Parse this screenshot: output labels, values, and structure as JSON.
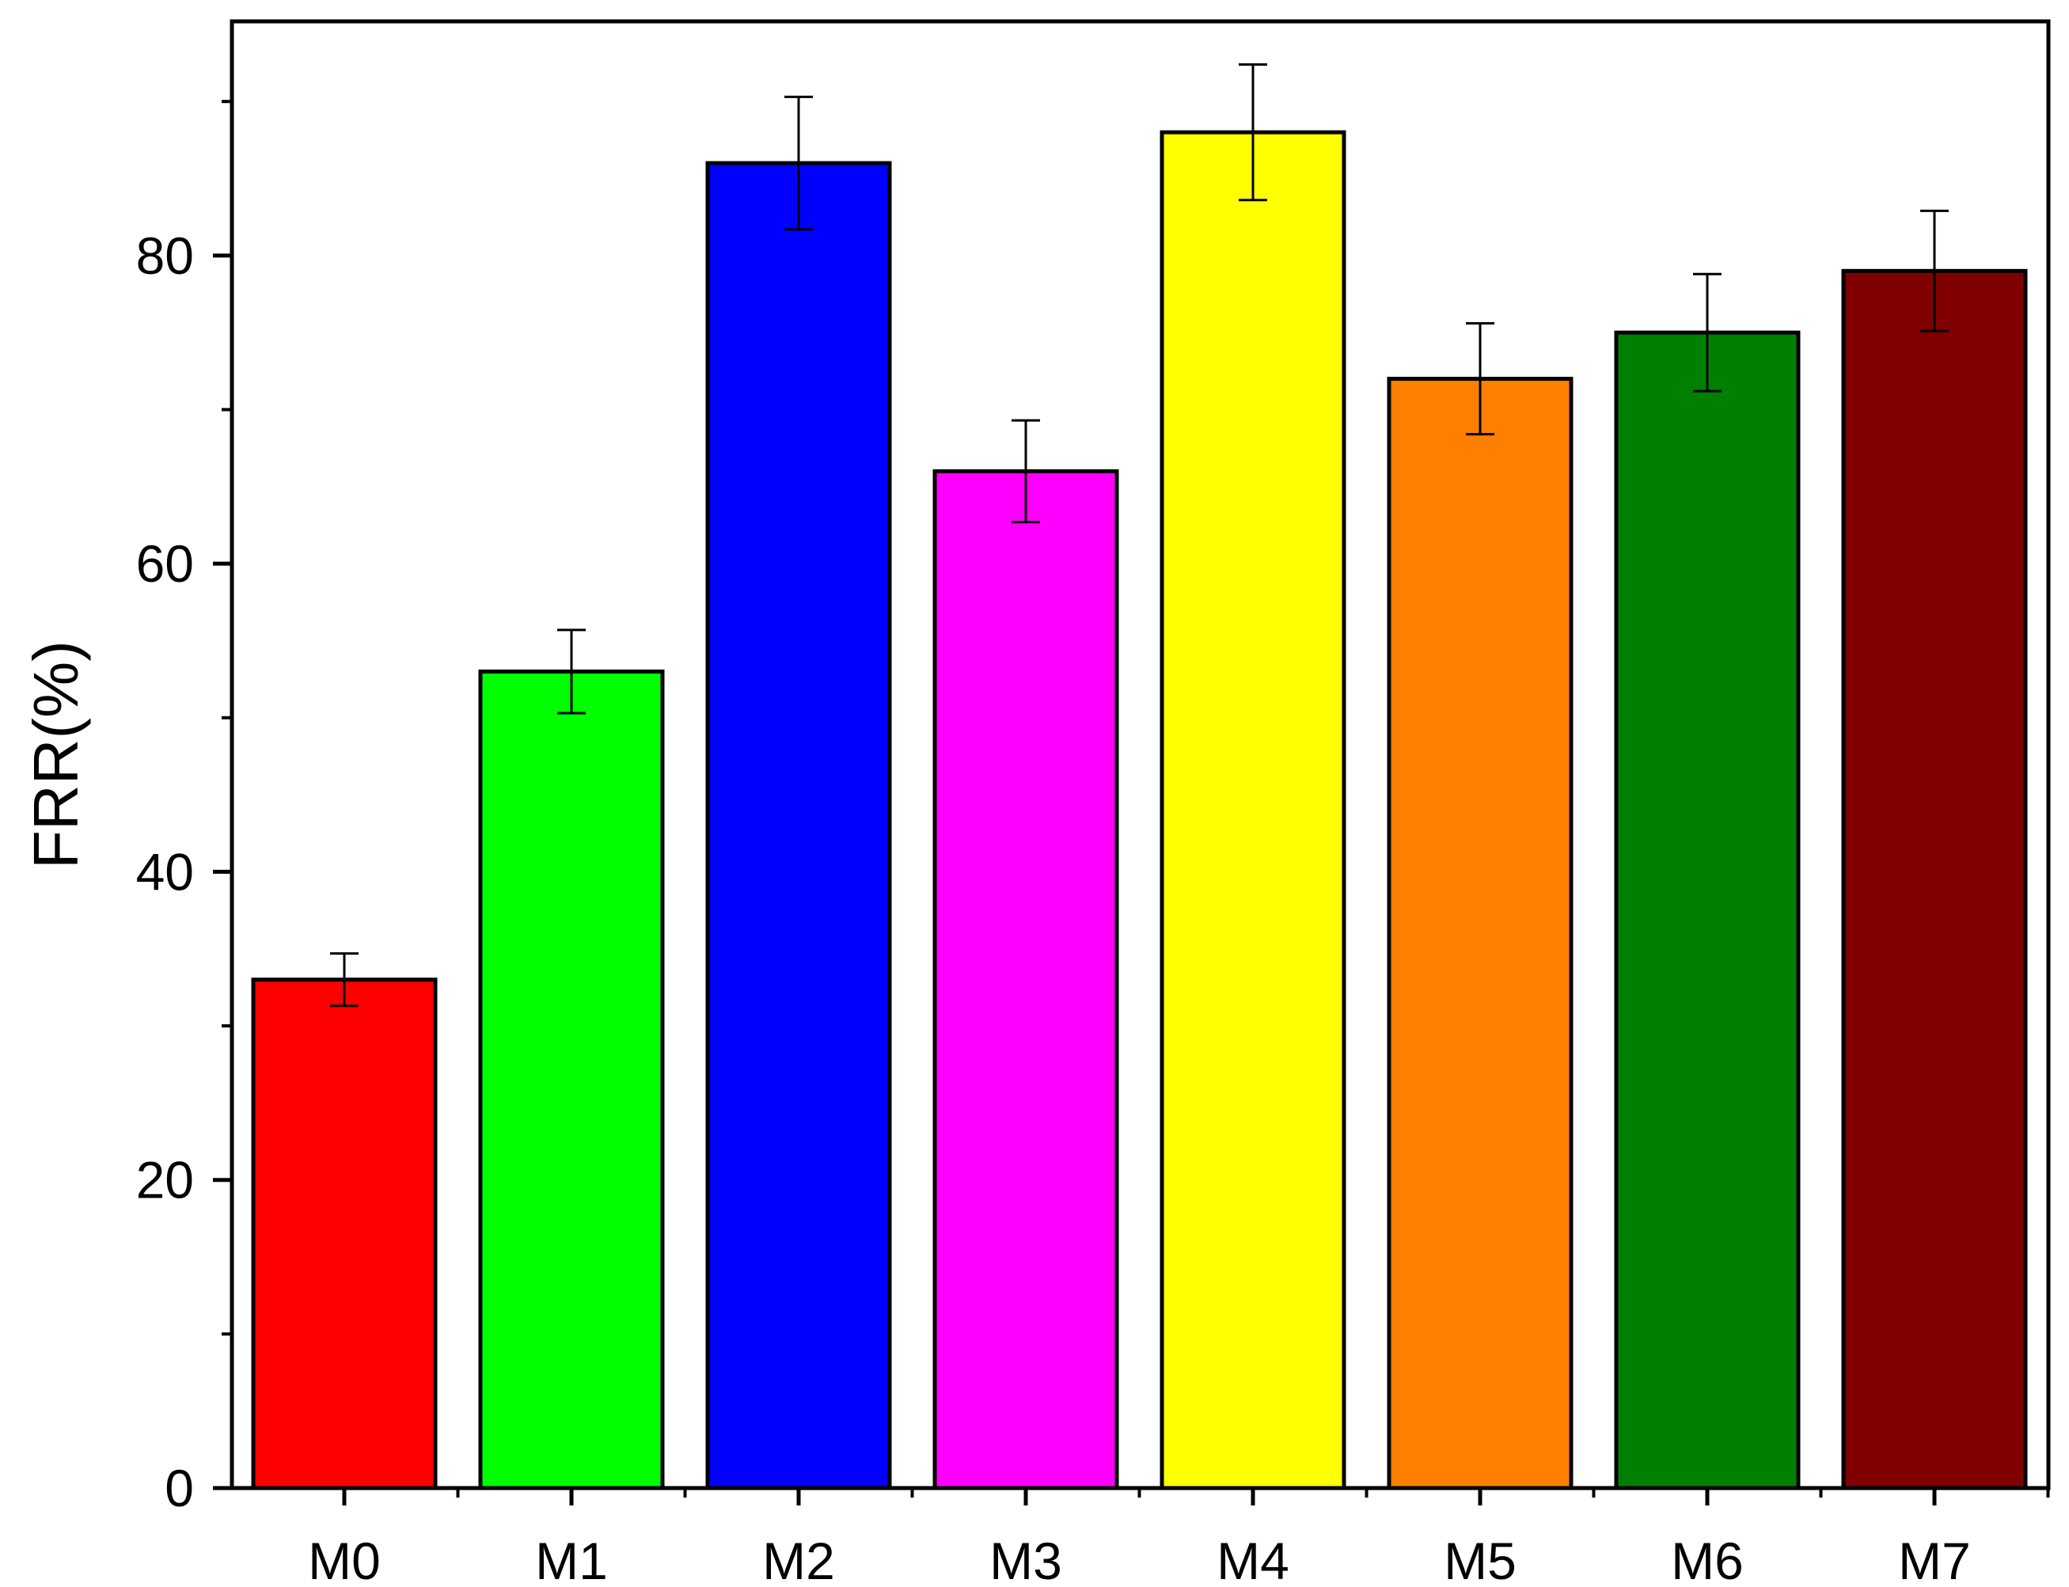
{
  "chart_data": {
    "type": "bar",
    "title": "",
    "xlabel": "",
    "ylabel": "FRR(%)",
    "categories": [
      "M0",
      "M1",
      "M2",
      "M3",
      "M4",
      "M5",
      "M6",
      "M7"
    ],
    "values": [
      33,
      53,
      86,
      66,
      88,
      72,
      75,
      79
    ],
    "errors": [
      1.7,
      2.7,
      4.3,
      3.3,
      4.4,
      3.6,
      3.8,
      3.9
    ],
    "colors": [
      "#ff0000",
      "#00ff00",
      "#0000ff",
      "#ff00ff",
      "#ffff00",
      "#ff8000",
      "#008000",
      "#800000"
    ],
    "ylim": [
      0,
      95.2
    ],
    "yticks": [
      0,
      20,
      40,
      60,
      80
    ],
    "yticklabels": [
      "0",
      "20",
      "40",
      "60",
      "80"
    ],
    "grid": false,
    "legend": "none"
  }
}
